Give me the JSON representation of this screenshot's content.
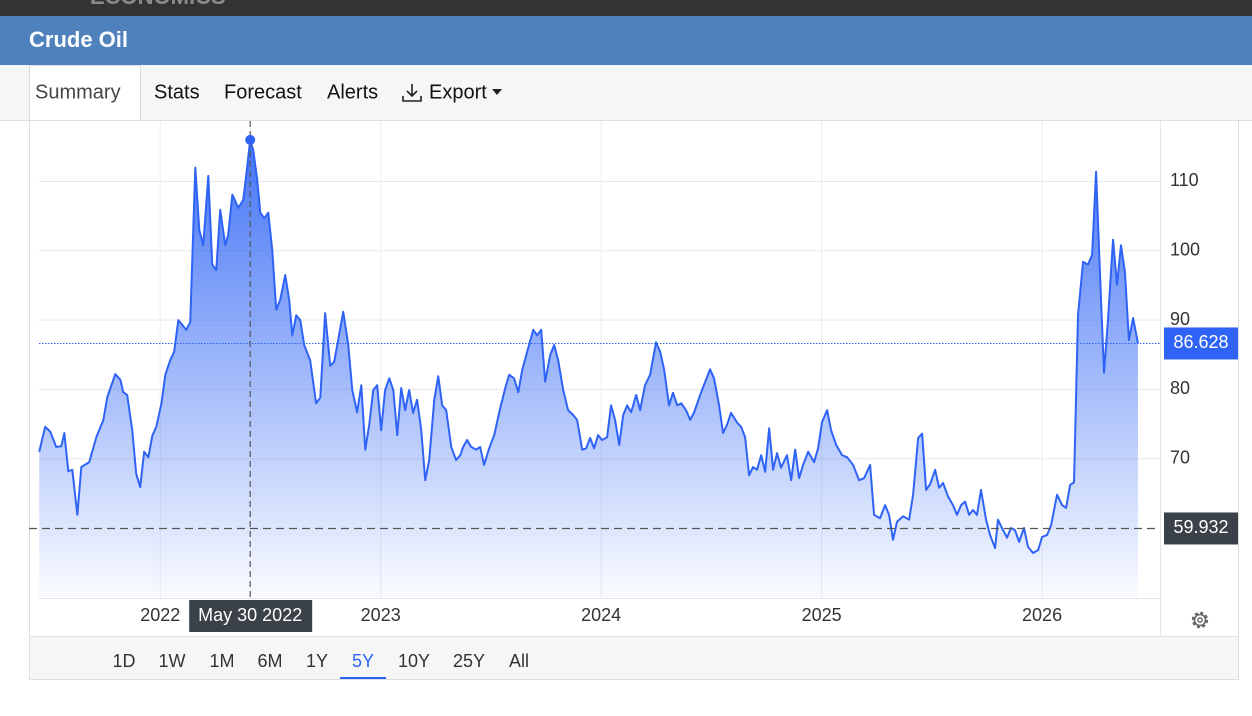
{
  "brand": "ECONOMICS",
  "header": {
    "title": "Crude Oil"
  },
  "tabs": {
    "items": [
      "Summary",
      "Stats",
      "Forecast",
      "Alerts",
      "Export"
    ],
    "selected": 0
  },
  "ranges": {
    "items": [
      "1D",
      "1W",
      "1M",
      "6M",
      "1Y",
      "5Y",
      "10Y",
      "25Y",
      "All"
    ],
    "selected": 5
  },
  "chart_data": {
    "type": "area",
    "line_color": "#2f63f5",
    "grid": true,
    "xlim": [
      2021.45,
      2026.535
    ],
    "xticks": [
      2022,
      2023,
      2024,
      2025,
      2026
    ],
    "ylim": [
      50,
      119
    ],
    "yticks": [
      70,
      80,
      90,
      100,
      110
    ],
    "reference_line": 59.932,
    "crosshair": {
      "x": 2022.408,
      "label": "May 30 2022"
    },
    "x": [
      2021.451,
      2021.478,
      2021.501,
      2021.528,
      2021.551,
      2021.565,
      2021.583,
      2021.601,
      2021.624,
      2021.642,
      2021.678,
      2021.71,
      2021.742,
      2021.76,
      2021.796,
      2021.819,
      2021.832,
      2021.85,
      2021.873,
      2021.891,
      2021.909,
      2021.927,
      2021.946,
      2021.964,
      2021.982,
      2022.005,
      2022.023,
      2022.045,
      2022.063,
      2022.082,
      2022.118,
      2022.136,
      2022.159,
      2022.177,
      2022.195,
      2022.218,
      2022.236,
      2022.254,
      2022.272,
      2022.295,
      2022.308,
      2022.327,
      2022.354,
      2022.376,
      2022.39,
      2022.408,
      2022.422,
      2022.44,
      2022.454,
      2022.472,
      2022.49,
      2022.508,
      2022.526,
      2022.544,
      2022.567,
      2022.585,
      2022.599,
      2022.617,
      2022.635,
      2022.653,
      2022.68,
      2022.707,
      2022.726,
      2022.748,
      2022.771,
      2022.789,
      2022.807,
      2022.83,
      2022.853,
      2022.871,
      2022.893,
      2022.912,
      2022.93,
      2022.948,
      2022.966,
      2022.984,
      2023.002,
      2023.02,
      2023.039,
      2023.057,
      2023.075,
      2023.093,
      2023.111,
      2023.129,
      2023.147,
      2023.165,
      2023.184,
      2023.202,
      2023.22,
      2023.243,
      2023.261,
      2023.279,
      2023.297,
      2023.32,
      2023.342,
      2023.361,
      2023.374,
      2023.392,
      2023.41,
      2023.433,
      2023.451,
      2023.469,
      2023.492,
      2023.515,
      2023.542,
      2023.565,
      2023.583,
      2023.605,
      2023.624,
      2023.642,
      2023.664,
      2023.692,
      2023.71,
      2023.728,
      2023.746,
      2023.769,
      2023.787,
      2023.805,
      2023.828,
      2023.85,
      2023.873,
      2023.891,
      2023.914,
      2023.932,
      2023.95,
      2023.968,
      2023.986,
      2024.004,
      2024.027,
      2024.045,
      2024.063,
      2024.082,
      2024.1,
      2024.118,
      2024.136,
      2024.159,
      2024.177,
      2024.199,
      2024.222,
      2024.249,
      2024.268,
      2024.286,
      2024.308,
      2024.326,
      2024.345,
      2024.363,
      2024.385,
      2024.404,
      2024.422,
      2024.449,
      2024.472,
      2024.494,
      2024.512,
      2024.535,
      2024.553,
      2024.571,
      2024.589,
      2024.617,
      2024.635,
      2024.653,
      2024.671,
      2024.689,
      2024.707,
      2024.726,
      2024.744,
      2024.762,
      2024.78,
      2024.798,
      2024.816,
      2024.843,
      2024.862,
      2024.88,
      2024.898,
      2024.916,
      2024.939,
      2024.966,
      2024.984,
      2025.002,
      2025.025,
      2025.043,
      2025.066,
      2025.093,
      2025.116,
      2025.143,
      2025.17,
      2025.193,
      2025.22,
      2025.238,
      2025.265,
      2025.288,
      2025.306,
      2025.324,
      2025.342,
      2025.37,
      2025.397,
      2025.415,
      2025.438,
      2025.456,
      2025.474,
      2025.492,
      2025.515,
      2025.533,
      2025.551,
      2025.574,
      2025.596,
      2025.614,
      2025.633,
      2025.651,
      2025.669,
      2025.687,
      2025.705,
      2025.723,
      2025.746,
      2025.764,
      2025.787,
      2025.8,
      2025.818,
      2025.841,
      2025.859,
      2025.877,
      2025.896,
      2025.918,
      2025.936,
      2025.959,
      2025.982,
      2026.0,
      2026.023,
      2026.041,
      2026.068,
      2026.091,
      2026.109,
      2026.127,
      2026.145,
      2026.163,
      2026.186,
      2026.208,
      2026.227,
      2026.245,
      2026.263,
      2026.281,
      2026.299,
      2026.322,
      2026.34,
      2026.358,
      2026.376,
      2026.394,
      2026.413,
      2026.435
    ],
    "series": [
      {
        "values": [
          71.0,
          74.6,
          73.9,
          71.7,
          71.8,
          73.7,
          68.2,
          68.4,
          61.9,
          68.8,
          69.5,
          73.1,
          75.6,
          78.9,
          82.2,
          81.4,
          79.6,
          79.2,
          74.1,
          67.8,
          65.9,
          71.0,
          70.2,
          73.3,
          74.6,
          77.9,
          82.1,
          84.2,
          85.4,
          90.0,
          88.6,
          89.7,
          112.0,
          103.0,
          100.8,
          110.8,
          98.0,
          97.2,
          105.9,
          100.8,
          102.3,
          108.1,
          106.2,
          107.3,
          110.9,
          116.0,
          114.5,
          110.2,
          105.5,
          104.7,
          105.5,
          100.1,
          91.5,
          92.9,
          96.5,
          92.9,
          87.8,
          90.7,
          90.0,
          86.4,
          84.2,
          78.0,
          78.8,
          91.0,
          83.4,
          84.0,
          87.1,
          91.2,
          86.4,
          79.9,
          76.7,
          80.6,
          71.3,
          74.9,
          79.9,
          80.6,
          74.1,
          79.9,
          81.6,
          79.9,
          73.4,
          80.2,
          77.0,
          79.9,
          76.6,
          78.5,
          74.1,
          66.9,
          69.8,
          78.5,
          81.9,
          77.7,
          77.0,
          71.7,
          69.8,
          70.5,
          71.7,
          72.7,
          71.7,
          71.3,
          71.7,
          69.1,
          71.5,
          73.4,
          77.3,
          80.2,
          82.1,
          81.6,
          79.6,
          82.8,
          85.4,
          88.6,
          87.8,
          88.6,
          81.1,
          85.0,
          86.4,
          84.2,
          79.9,
          77.0,
          76.3,
          75.6,
          71.3,
          71.5,
          73.0,
          71.5,
          73.4,
          72.7,
          73.1,
          77.7,
          75.6,
          72.0,
          76.3,
          77.7,
          76.7,
          79.2,
          77.0,
          80.6,
          82.1,
          86.8,
          85.4,
          82.8,
          77.7,
          79.5,
          77.7,
          78.0,
          77.0,
          75.6,
          76.7,
          79.2,
          81.1,
          82.9,
          81.6,
          77.7,
          73.7,
          74.9,
          76.6,
          75.2,
          74.6,
          73.1,
          67.6,
          68.8,
          68.4,
          70.5,
          68.1,
          74.4,
          68.4,
          70.8,
          68.7,
          70.5,
          66.9,
          71.3,
          67.2,
          69.1,
          71.0,
          69.5,
          71.5,
          75.3,
          77.0,
          74.1,
          72.0,
          70.5,
          70.2,
          69.1,
          66.9,
          67.2,
          69.1,
          61.9,
          61.4,
          63.3,
          61.9,
          58.3,
          60.9,
          61.7,
          61.2,
          64.8,
          73.0,
          73.6,
          65.5,
          66.3,
          68.4,
          65.8,
          66.5,
          64.5,
          63.3,
          61.9,
          63.3,
          63.8,
          61.9,
          62.6,
          61.9,
          65.5,
          61.2,
          59.0,
          57.1,
          61.2,
          60.0,
          58.6,
          60.0,
          59.7,
          58.0,
          60.0,
          57.3,
          56.4,
          56.8,
          58.7,
          59.0,
          60.4,
          64.8,
          63.3,
          62.9,
          66.2,
          66.6,
          90.7,
          98.4,
          98.0,
          99.4,
          111.4,
          96.5,
          82.4,
          90.0,
          101.6,
          95.1,
          100.8,
          96.9,
          87.1,
          90.3,
          86.628
        ]
      }
    ]
  }
}
